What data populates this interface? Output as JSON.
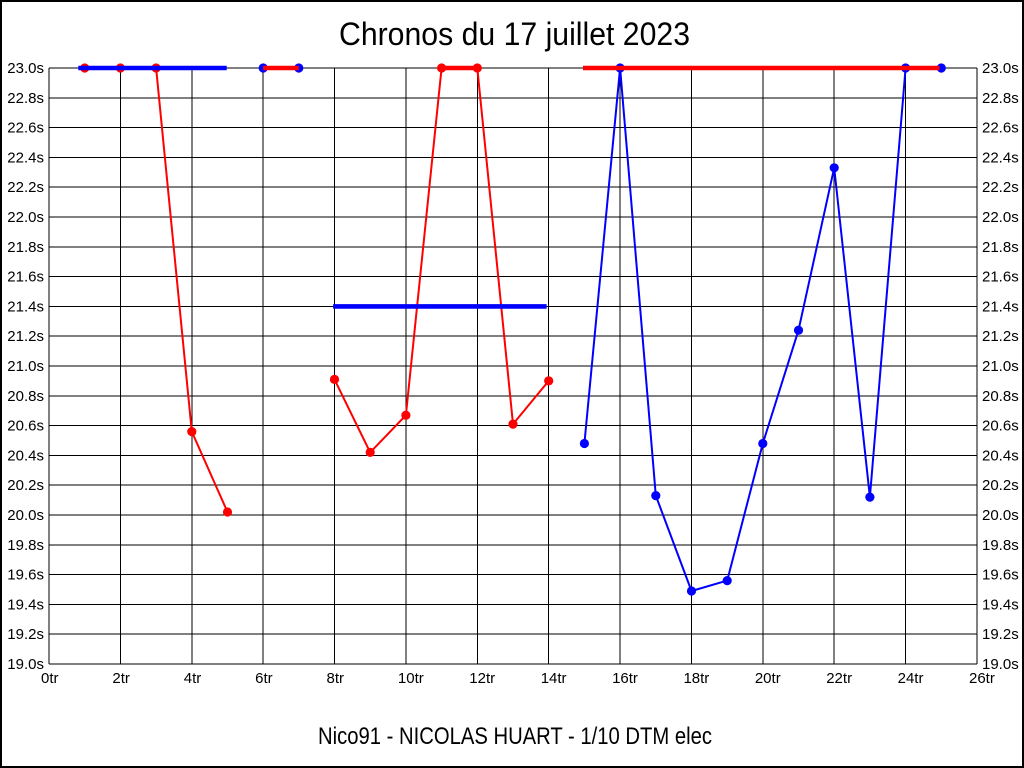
{
  "title": "Chronos du 17 juillet 2023",
  "footer": "Nico91 - NICOLAS HUART - 1/10 DTM elec",
  "chart_data": {
    "type": "line",
    "title": "Chronos du 17 juillet 2023",
    "footer": "Nico91 - NICOLAS HUART - 1/10 DTM elec",
    "x_unit": "tr",
    "y_unit": "s",
    "xlim": [
      0,
      26
    ],
    "ylim": [
      19.0,
      23.0
    ],
    "grid": true,
    "x_tick_labels": [
      "0tr",
      "2tr",
      "4tr",
      "6tr",
      "8tr",
      "10tr",
      "12tr",
      "14tr",
      "16tr",
      "18tr",
      "20tr",
      "22tr",
      "24tr",
      "26tr"
    ],
    "y_tick_labels": [
      "23.0s",
      "22.8s",
      "22.6s",
      "22.4s",
      "22.2s",
      "22.0s",
      "21.8s",
      "21.6s",
      "21.4s",
      "21.2s",
      "21.0s",
      "20.8s",
      "20.6s",
      "20.4s",
      "20.2s",
      "20.0s",
      "19.8s",
      "19.6s",
      "19.4s",
      "19.2s",
      "19.0s"
    ],
    "colors": {
      "red": "#ff0000",
      "blue": "#0000ff"
    },
    "series": [
      {
        "name": "red-laps-run-1",
        "color": "#ff0000",
        "points": [
          [
            1,
            23.0
          ],
          [
            2,
            23.0
          ],
          [
            3,
            23.0
          ],
          [
            4,
            20.56
          ],
          [
            5,
            20.02
          ]
        ]
      },
      {
        "name": "red-laps-run-2",
        "color": "#ff0000",
        "points": [
          [
            8,
            20.91
          ],
          [
            9,
            20.42
          ],
          [
            10,
            20.67
          ],
          [
            11,
            23.0
          ],
          [
            12,
            23.0
          ],
          [
            13,
            20.61
          ],
          [
            14,
            20.9
          ]
        ]
      },
      {
        "name": "blue-laps-run-1",
        "color": "#0000ff",
        "points": [
          [
            6,
            23.0
          ],
          [
            7,
            23.0
          ]
        ]
      },
      {
        "name": "blue-laps-run-2",
        "color": "#0000ff",
        "points": [
          [
            15,
            20.48
          ],
          [
            16,
            23.0
          ],
          [
            17,
            20.13
          ],
          [
            18,
            19.49
          ],
          [
            19,
            19.56
          ],
          [
            20,
            20.48
          ],
          [
            21,
            21.24
          ],
          [
            22,
            22.33
          ],
          [
            23,
            20.12
          ],
          [
            24,
            23.0
          ],
          [
            25,
            23.0
          ]
        ]
      }
    ],
    "reference_lines": [
      {
        "name": "blue-avg-line-1",
        "color": "#0000ff",
        "y": 23.0,
        "x1": 0.82,
        "x2": 4.98
      },
      {
        "name": "blue-avg-line-2",
        "color": "#0000ff",
        "y": 21.4,
        "x1": 7.96,
        "x2": 13.94
      },
      {
        "name": "red-flat-segment-1",
        "color": "#ff0000",
        "y": 23.0,
        "x1": 6.0,
        "x2": 7.0
      },
      {
        "name": "red-flat-segment-2",
        "color": "#ff0000",
        "y": 23.0,
        "x1": 11.0,
        "x2": 12.0
      },
      {
        "name": "red-avg-line",
        "color": "#ff0000",
        "y": 23.0,
        "x1": 14.96,
        "x2": 24.95
      }
    ]
  }
}
